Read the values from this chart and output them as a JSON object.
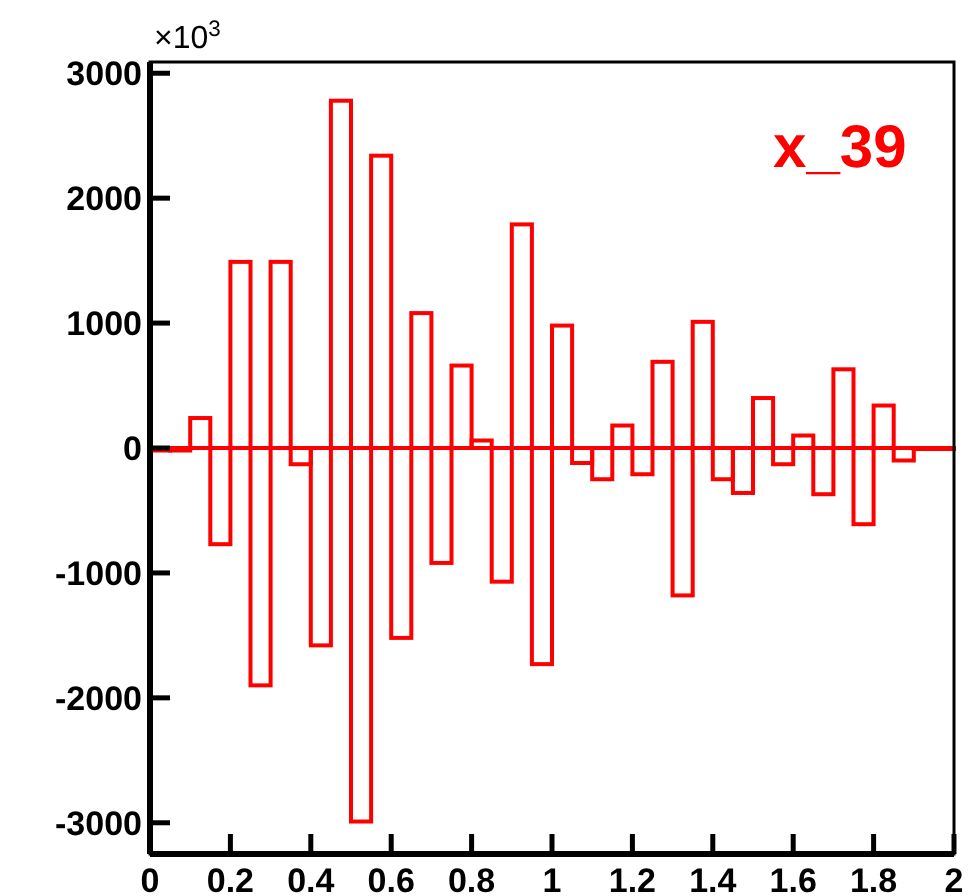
{
  "chart_data": {
    "type": "histogram",
    "title": "x_39",
    "ylabel": "×10$^{3}$",
    "color": "#ff0000",
    "bins": [
      0,
      0.05,
      0.1,
      0.15,
      0.2,
      0.25,
      0.3,
      0.35,
      0.4,
      0.45,
      0.5,
      0.55,
      0.6,
      0.65,
      0.7,
      0.75,
      0.8,
      0.85,
      0.9,
      0.95,
      1,
      1.05,
      1.1,
      1.15,
      1.2,
      1.25,
      1.3,
      1.35,
      1.4,
      1.45,
      1.5,
      1.55,
      1.6,
      1.65,
      1.7,
      1.75,
      1.8,
      1.85,
      1.9,
      1.95,
      2
    ],
    "values": [
      -20,
      -20,
      240,
      -770,
      1490,
      -1900,
      1490,
      -130,
      -1580,
      2780,
      -2990,
      2340,
      -1520,
      1080,
      -920,
      660,
      60,
      -1070,
      1790,
      -1730,
      980,
      -120,
      -250,
      180,
      -210,
      690,
      -1180,
      1010,
      -250,
      -360,
      400,
      -130,
      100,
      -370,
      630,
      -610,
      340,
      -100,
      0,
      0
    ],
    "xlim": [
      0,
      2
    ],
    "xticks": [
      0,
      0.2,
      0.4,
      0.6,
      0.8,
      1,
      1.2,
      1.4,
      1.6,
      1.8,
      2
    ],
    "ylim": [
      -3250,
      3090
    ],
    "yticks": [
      -3000,
      -2000,
      -1000,
      0,
      1000,
      2000,
      3000
    ],
    "grid": false
  }
}
